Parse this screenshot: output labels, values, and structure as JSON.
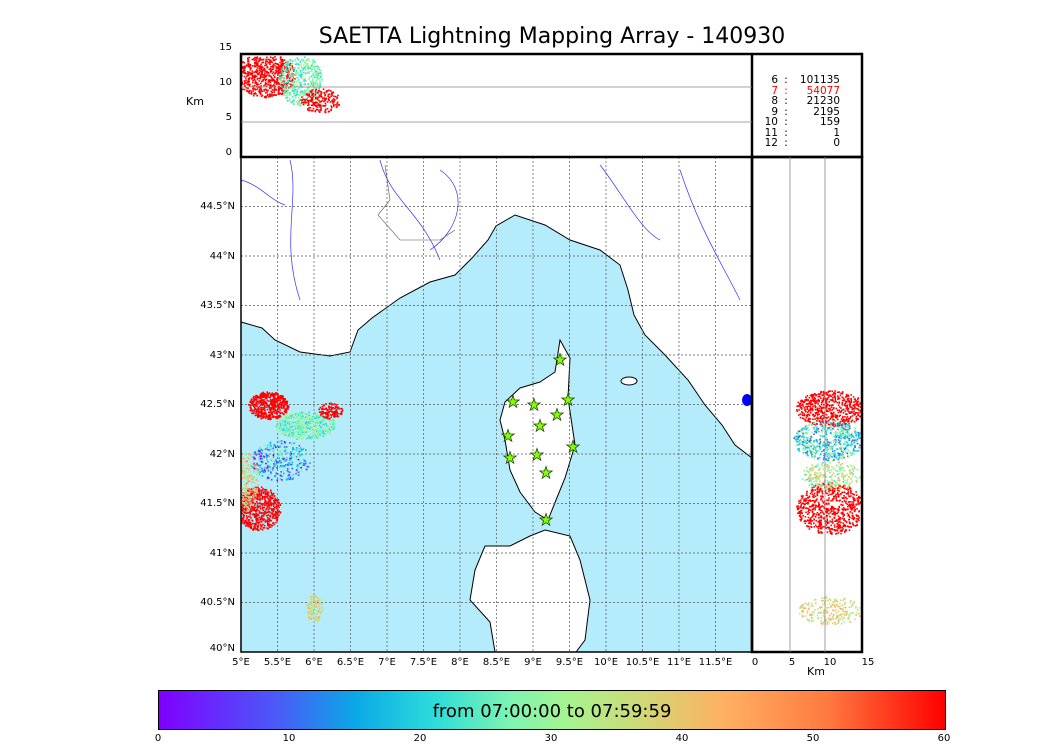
{
  "chart_data": {
    "type": "scatter",
    "title": "SAETTA Lightning Mapping Array - 140930",
    "top_panel": {
      "ylabel": "Km",
      "yticks": [
        "15",
        "10",
        "5",
        "0"
      ],
      "ylim": [
        0,
        15
      ]
    },
    "map": {
      "xticks": [
        "5°E",
        "5.5°E",
        "6°E",
        "6.5°E",
        "7°E",
        "7.5°E",
        "8°E",
        "8.5°E",
        "9°E",
        "9.5°E",
        "10°E",
        "10.5°E",
        "11°E",
        "11.5°E"
      ],
      "yticks": [
        "44.5°N",
        "44°N",
        "43.5°N",
        "43°N",
        "42.5°N",
        "42°N",
        "41.5°N",
        "41°N",
        "40.5°N",
        "40°N"
      ],
      "xlim": [
        5,
        12
      ],
      "ylim": [
        40,
        45
      ]
    },
    "right_panel": {
      "xlabel": "Km",
      "xticks": [
        "0",
        "5",
        "10",
        "15"
      ],
      "xlim": [
        0,
        15
      ]
    },
    "station_counts": [
      {
        "stations": "6",
        "count": "101135",
        "highlight": false
      },
      {
        "stations": "7",
        "count": "54077",
        "highlight": true
      },
      {
        "stations": "8",
        "count": "21230",
        "highlight": false
      },
      {
        "stations": "9",
        "count": "2195",
        "highlight": false
      },
      {
        "stations": "10",
        "count": "159",
        "highlight": false
      },
      {
        "stations": "11",
        "count": "1",
        "highlight": false
      },
      {
        "stations": "12",
        "count": "0",
        "highlight": false
      }
    ],
    "colorbar": {
      "label": "from 07:00:00 to 07:59:59",
      "ticks": [
        "0",
        "10",
        "20",
        "30",
        "40",
        "50",
        "60"
      ],
      "range": [
        0,
        60
      ]
    },
    "highlight_color": "#ff0000",
    "sea_color": "#b5ecfb"
  }
}
